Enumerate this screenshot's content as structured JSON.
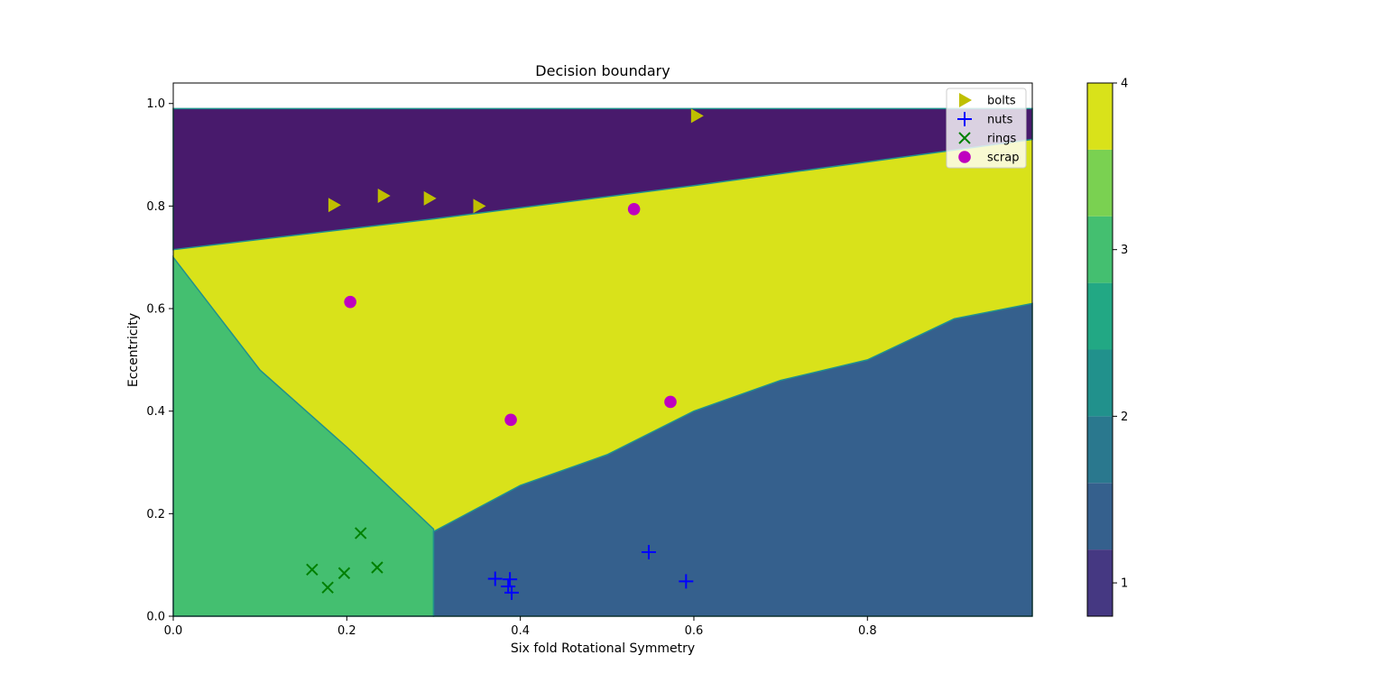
{
  "chart_data": {
    "type": "scatter",
    "title": "Decision boundary",
    "xlabel": "Six fold Rotational Symmetry",
    "ylabel": "Eccentricity",
    "xlim": [
      0.0,
      0.99
    ],
    "ylim": [
      0.0,
      1.04
    ],
    "x_ticks": [
      "0.0",
      "0.2",
      "0.4",
      "0.6",
      "0.8"
    ],
    "y_ticks": [
      "0.0",
      "0.2",
      "0.4",
      "0.6",
      "0.8",
      "1.0"
    ],
    "grid": false,
    "legend_position": "top-right",
    "background_regions": {
      "description": "filled contour of predicted class (1=bolts, 2=nuts, 3=rings, 4=scrap)",
      "y_extent": [
        0.0,
        0.99
      ],
      "class1_lower_boundary": [
        [
          0.0,
          0.715
        ],
        [
          0.3,
          0.775
        ],
        [
          0.6,
          0.84
        ],
        [
          0.99,
          0.93
        ]
      ],
      "class2_upper_boundary": [
        [
          0.3,
          0.165
        ],
        [
          0.4,
          0.255
        ],
        [
          0.5,
          0.315
        ],
        [
          0.6,
          0.4
        ],
        [
          0.7,
          0.46
        ],
        [
          0.8,
          0.5
        ],
        [
          0.9,
          0.58
        ],
        [
          0.99,
          0.61
        ]
      ],
      "class3_right_boundary": [
        [
          0.0,
          0.7
        ],
        [
          0.1,
          0.48
        ],
        [
          0.2,
          0.33
        ],
        [
          0.3,
          0.17
        ],
        [
          0.3,
          0.0
        ]
      ]
    },
    "colorbar": {
      "ticks": [
        "1",
        "2",
        "3",
        "4"
      ],
      "range": [
        0.8,
        4.0
      ],
      "levels": [
        0.8,
        1.2,
        1.6,
        2.0,
        2.4,
        2.8,
        3.2,
        3.6,
        4.0
      ],
      "colors": [
        "#481a6c",
        "#453882",
        "#35608d",
        "#2a788e",
        "#21918c",
        "#22a884",
        "#44bf70",
        "#7ad151",
        "#d9e21a"
      ]
    },
    "region_colors": {
      "class1": "#481a6c",
      "class2": "#35608d",
      "class3": "#44bf70",
      "class4": "#d9e21a",
      "edge": "#21918c"
    },
    "series": [
      {
        "name": "bolts",
        "marker": "triangle-right",
        "color": "#bfbf00",
        "points": [
          [
            0.185,
            0.802
          ],
          [
            0.242,
            0.82
          ],
          [
            0.295,
            0.815
          ],
          [
            0.352,
            0.8
          ],
          [
            0.603,
            0.976
          ]
        ]
      },
      {
        "name": "nuts",
        "marker": "plus",
        "color": "#0000ff",
        "points": [
          [
            0.371,
            0.073
          ],
          [
            0.388,
            0.072
          ],
          [
            0.386,
            0.058
          ],
          [
            0.39,
            0.046
          ],
          [
            0.548,
            0.125
          ],
          [
            0.591,
            0.068
          ]
        ]
      },
      {
        "name": "rings",
        "marker": "x",
        "color": "#008000",
        "points": [
          [
            0.16,
            0.091
          ],
          [
            0.178,
            0.056
          ],
          [
            0.197,
            0.084
          ],
          [
            0.216,
            0.162
          ],
          [
            0.235,
            0.095
          ]
        ]
      },
      {
        "name": "scrap",
        "marker": "circle",
        "color": "#bf00bf",
        "points": [
          [
            0.204,
            0.613
          ],
          [
            0.389,
            0.383
          ],
          [
            0.531,
            0.794
          ],
          [
            0.573,
            0.418
          ]
        ]
      }
    ]
  }
}
